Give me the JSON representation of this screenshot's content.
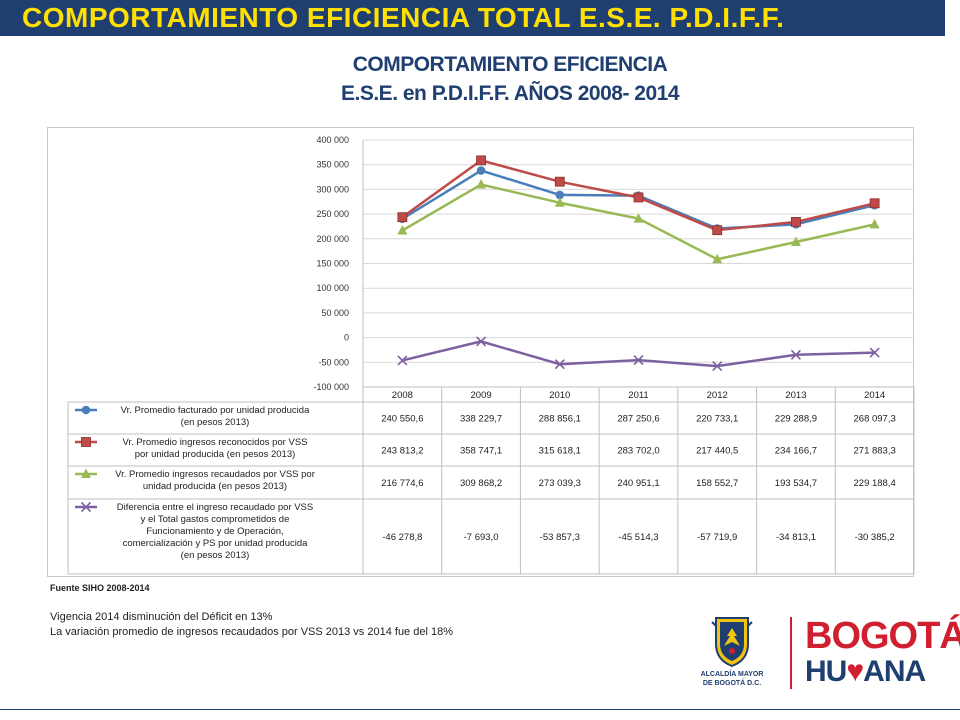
{
  "banner": {
    "title": "COMPORTAMIENTO EFICIENCIA TOTAL  E.S.E. P.D.I.F.F."
  },
  "slide_title": {
    "line1": "COMPORTAMIENTO EFICIENCIA",
    "line2": "E.S.E. en P.D.I.F.F. AÑOS 2008- 2014"
  },
  "chart_data": {
    "type": "line",
    "title": "",
    "xlabel": "",
    "ylabel": "",
    "ylim": [
      -100000,
      400000
    ],
    "ytick_step": 50000,
    "yticks": [
      "400 000",
      "350 000",
      "300 000",
      "250 000",
      "200 000",
      "150 000",
      "100 000",
      "50 000",
      "0",
      "-50 000",
      "-100 000"
    ],
    "grid": true,
    "legend": "data-table-below",
    "categories": [
      "2008",
      "2009",
      "2010",
      "2011",
      "2012",
      "2013",
      "2014"
    ],
    "series": [
      {
        "name": "Vr. Promedio facturado por unidad producida (en pesos 2013)",
        "name_lines": [
          "Vr. Promedio facturado por unidad producida",
          "(en pesos 2013)"
        ],
        "color": "#4a7ebb",
        "marker": "circle",
        "values": [
          240550.6,
          338229.7,
          288856.1,
          287250.6,
          220733.1,
          229288.9,
          268097.3
        ],
        "labels": [
          "240 550,6",
          "338 229,7",
          "288 856,1",
          "287 250,6",
          "220 733,1",
          "229 288,9",
          "268 097,3"
        ]
      },
      {
        "name": "Vr. Promedio ingresos reconocidos por VSS por unidad producida (en pesos 2013)",
        "name_lines": [
          "Vr. Promedio ingresos reconocidos por VSS",
          "por unidad producida (en pesos 2013)"
        ],
        "color": "#be4b48",
        "marker": "square",
        "values": [
          243813.2,
          358747.1,
          315618.1,
          283702.0,
          217440.5,
          234166.7,
          271883.3
        ],
        "labels": [
          "243 813,2",
          "358 747,1",
          "315 618,1",
          "283 702,0",
          "217 440,5",
          "234 166,7",
          "271 883,3"
        ]
      },
      {
        "name": "Vr. Promedio ingresos recaudados por VSS por unidad producida (en pesos 2013)",
        "name_lines": [
          "Vr. Promedio ingresos recaudados por VSS por",
          "unidad producida (en pesos 2013)"
        ],
        "color": "#98b954",
        "marker": "triangle",
        "values": [
          216774.6,
          309868.2,
          273039.3,
          240951.1,
          158552.7,
          193534.7,
          229188.4
        ],
        "labels": [
          "216 774,6",
          "309 868,2",
          "273 039,3",
          "240 951,1",
          "158 552,7",
          "193 534,7",
          "229 188,4"
        ]
      },
      {
        "name": "Diferencia entre el ingreso recaudado por VSS y el Total gastos comprometidos de Funcionamiento y de Operación, comercialización y PS por unidad producida (en pesos 2013)",
        "name_lines": [
          "Diferencia entre el ingreso recaudado por VSS",
          "y el Total gastos comprometidos de",
          "Funcionamiento y de Operación,",
          "comercialización y PS por unidad producida",
          "(en pesos 2013)"
        ],
        "color": "#7d60a0",
        "marker": "x",
        "values": [
          -46278.8,
          -7693.0,
          -53857.3,
          -45514.3,
          -57719.9,
          -34813.1,
          -30385.2
        ],
        "labels": [
          "-46 278,8",
          "-7 693,0",
          "-53 857,3",
          "-45 514,3",
          "-57 719,9",
          "-34 813,1",
          "-30 385,2"
        ]
      }
    ]
  },
  "source": "Fuente SIHO 2008-2014",
  "notes": [
    "Vigencia 2014 disminución del Déficit en 13%",
    "La variación promedio de ingresos recaudados por VSS 2013 vs 2014 fue del 18%"
  ],
  "logos": {
    "crest_caption_line1": "ALCALDÍA MAYOR",
    "crest_caption_line2": "DE BOGOTÁ D.C.",
    "brand_line1": "BOGOTÁ",
    "brand_line2_a": "HU",
    "brand_line2_heart": "♥",
    "brand_line2_b": "ANA",
    "brand_line2_full": "HUMANA",
    "crest_icon": "coat-of-arms-icon",
    "primary_color": "#1f3f70",
    "accent_color": "#ffe000",
    "brand_red": "#d01f2f"
  }
}
